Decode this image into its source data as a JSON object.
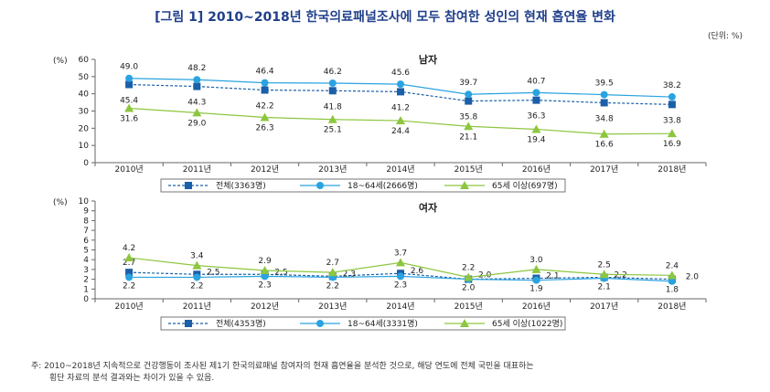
{
  "figure": {
    "title": "[그림 1] 2010~2018년 한국의료패널조사에 모두 참여한 성인의 현재 흡연율 변화",
    "unit": "(단위: %)",
    "note_line1": "주: 2010~2018년 지속적으로 건강행동이 조사된 제1기 한국의료패널 참여자의 현재 흡연율을 분석한 것으로, 해당 연도에 전체 국민을 대표하는",
    "note_line2": "횡단 자료의 분석 결과와는 차이가 있을 수 있음."
  },
  "chart_data": [
    {
      "type": "line",
      "title": "남자",
      "ylabel": "(%)",
      "ylim": [
        0,
        60
      ],
      "yticks": [
        0,
        10,
        20,
        30,
        40,
        50,
        60
      ],
      "categories": [
        "2010년",
        "2011년",
        "2012년",
        "2013년",
        "2014년",
        "2015년",
        "2016년",
        "2017년",
        "2018년"
      ],
      "grid": false,
      "legend": "bottom",
      "series": [
        {
          "name": "전체(3363명)",
          "color": "#1a5fa8",
          "marker": "square",
          "dash": true,
          "values": [
            45.4,
            44.3,
            42.2,
            41.8,
            41.2,
            35.8,
            36.3,
            34.8,
            33.8
          ]
        },
        {
          "name": "18~64세(2666명)",
          "color": "#2aa3e0",
          "marker": "circle",
          "dash": false,
          "values": [
            49.0,
            48.2,
            46.4,
            46.2,
            45.6,
            39.7,
            40.7,
            39.5,
            38.2
          ]
        },
        {
          "name": "65세 이상(697명)",
          "color": "#8dc63f",
          "marker": "triangle",
          "dash": false,
          "values": [
            31.6,
            29.0,
            26.3,
            25.1,
            24.4,
            21.1,
            19.4,
            16.6,
            16.9
          ]
        }
      ]
    },
    {
      "type": "line",
      "title": "여자",
      "ylabel": "(%)",
      "ylim": [
        0,
        10
      ],
      "yticks": [
        0,
        1,
        2,
        3,
        4,
        5,
        6,
        7,
        8,
        9,
        10
      ],
      "categories": [
        "2010년",
        "2011년",
        "2012년",
        "2013년",
        "2014년",
        "2015년",
        "2016년",
        "2017년",
        "2018년"
      ],
      "grid": false,
      "legend": "bottom",
      "series": [
        {
          "name": "전체(4353명)",
          "color": "#1a5fa8",
          "marker": "square",
          "dash": true,
          "values": [
            2.7,
            2.5,
            2.5,
            2.3,
            2.6,
            2.0,
            2.1,
            2.2,
            2.0
          ]
        },
        {
          "name": "18~64세(3331명)",
          "color": "#2aa3e0",
          "marker": "circle",
          "dash": false,
          "values": [
            2.2,
            2.2,
            2.3,
            2.2,
            2.3,
            2.0,
            1.9,
            2.1,
            1.8
          ]
        },
        {
          "name": "65세 이상(1022명)",
          "color": "#8dc63f",
          "marker": "triangle",
          "dash": false,
          "values": [
            4.2,
            3.4,
            2.9,
            2.7,
            3.7,
            2.2,
            3.0,
            2.5,
            2.4
          ]
        }
      ]
    }
  ]
}
